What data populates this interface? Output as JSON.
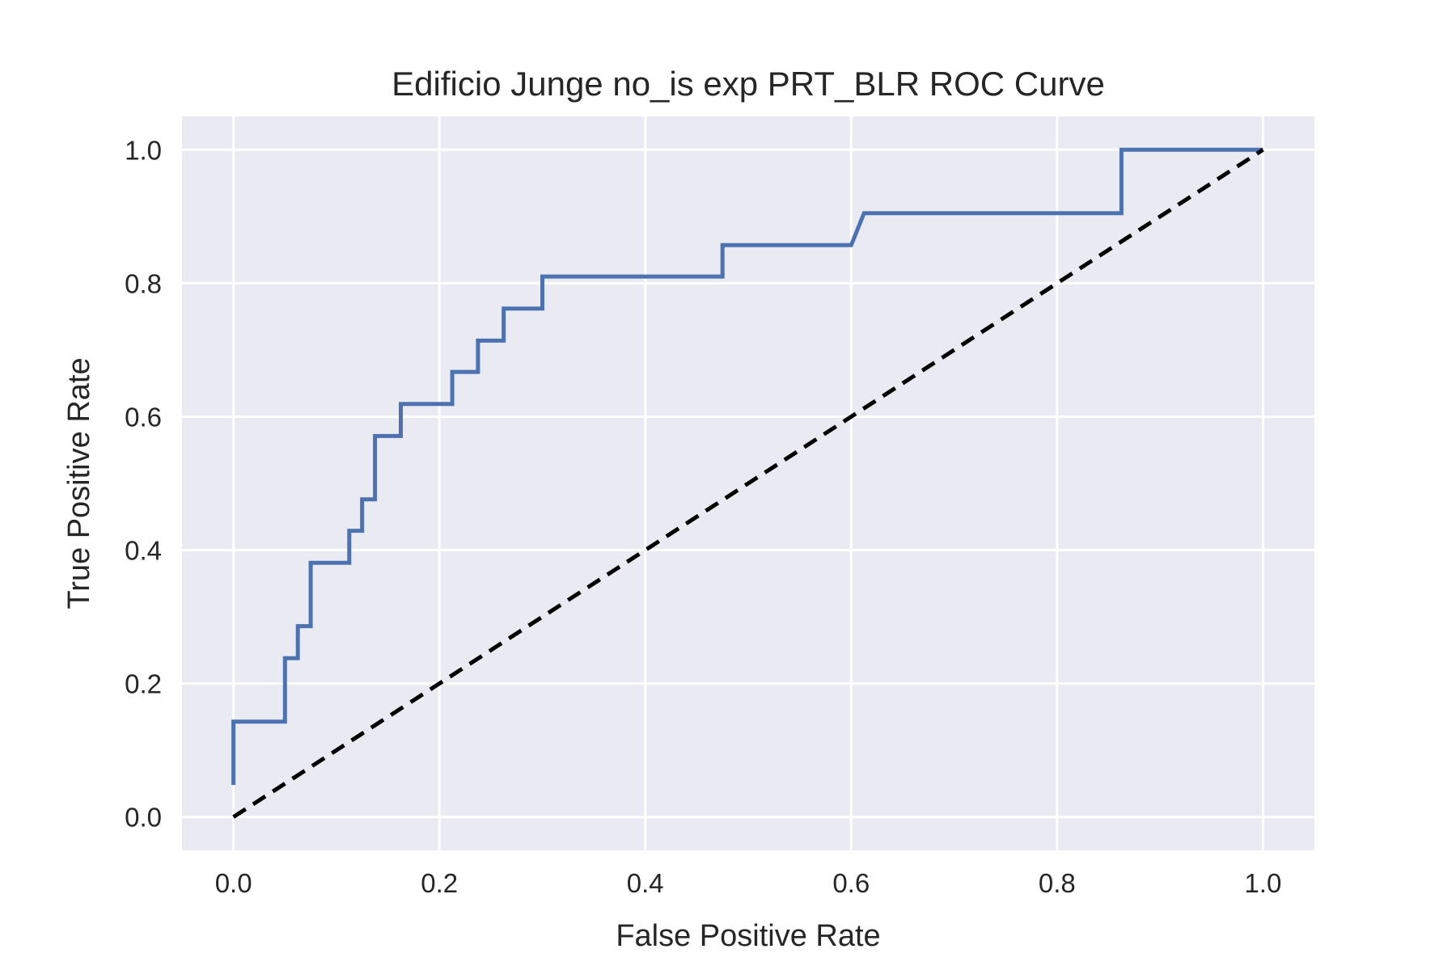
{
  "chart_data": {
    "type": "line",
    "title": "Edificio Junge no_is exp PRT_BLR ROC Curve",
    "xlabel": "False Positive Rate",
    "ylabel": "True Positive Rate",
    "xlim": [
      -0.05,
      1.05
    ],
    "ylim": [
      -0.05,
      1.05
    ],
    "xticks": [
      0.0,
      0.2,
      0.4,
      0.6,
      0.8,
      1.0
    ],
    "yticks": [
      0.0,
      0.2,
      0.4,
      0.6,
      0.8,
      1.0
    ],
    "xtick_labels": [
      "0.0",
      "0.2",
      "0.4",
      "0.6",
      "0.8",
      "1.0"
    ],
    "ytick_labels": [
      "0.0",
      "0.2",
      "0.4",
      "0.6",
      "0.8",
      "1.0"
    ],
    "grid": true,
    "legend": "none",
    "colors": {
      "background": "#eaeaf2",
      "grid": "#ffffff",
      "roc": "#4c72b0",
      "diagonal": "#000000"
    },
    "series": [
      {
        "style": "solid",
        "x": [
          0.0,
          0.0,
          0.05,
          0.05,
          0.0625,
          0.0625,
          0.075,
          0.075,
          0.1125,
          0.1125,
          0.125,
          0.125,
          0.1375,
          0.1375,
          0.1625,
          0.1625,
          0.2125,
          0.2125,
          0.2375,
          0.2375,
          0.2625,
          0.2625,
          0.3,
          0.3,
          0.475,
          0.475,
          0.6,
          0.6125,
          0.8625,
          0.8625,
          1.0
        ],
        "y": [
          0.048,
          0.143,
          0.143,
          0.238,
          0.238,
          0.286,
          0.286,
          0.381,
          0.381,
          0.429,
          0.429,
          0.476,
          0.476,
          0.571,
          0.571,
          0.619,
          0.619,
          0.667,
          0.667,
          0.714,
          0.714,
          0.762,
          0.762,
          0.81,
          0.81,
          0.857,
          0.857,
          0.905,
          0.905,
          1.0,
          1.0
        ]
      },
      {
        "style": "dashed",
        "x": [
          0.0,
          1.0
        ],
        "y": [
          0.0,
          1.0
        ]
      }
    ]
  }
}
